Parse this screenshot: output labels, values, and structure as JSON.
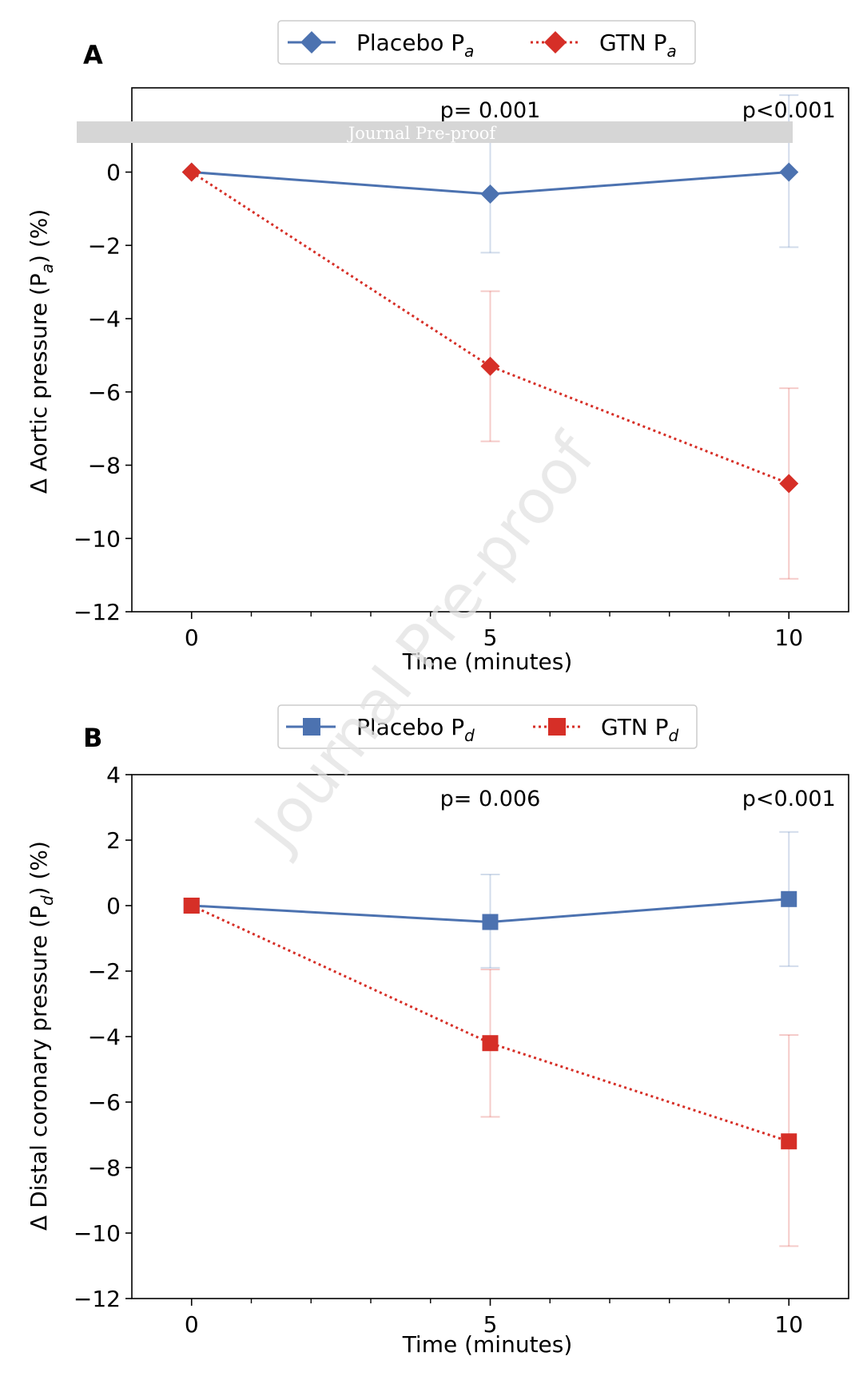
{
  "watermark": {
    "banner_text": "Journal Pre-proof",
    "diagonal_text": "Journal Pre-proof"
  },
  "chart_data": [
    {
      "panel_label": "A",
      "type": "line",
      "xlabel": "Time (minutes)",
      "ylabel_prefix": "Δ Aortic pressure (P",
      "ylabel_sub": "a",
      "ylabel_suffix": ") (%)",
      "xlim": [
        -1,
        11
      ],
      "ylim": [
        -12,
        2.3
      ],
      "xticks": [
        0,
        5,
        10
      ],
      "xtick_labels": [
        "0",
        "5",
        "10"
      ],
      "yticks": [
        -12,
        -10,
        -8,
        -6,
        -4,
        -2,
        0
      ],
      "ytick_labels": [
        "−12",
        "−10",
        "−8",
        "−6",
        "−4",
        "−2",
        "0"
      ],
      "minor_xticks": [
        1,
        2,
        3,
        4,
        6,
        7,
        8,
        9
      ],
      "annotations": [
        {
          "x": 5,
          "text": "p= 0.001"
        },
        {
          "x": 10,
          "text": "p<0.001"
        }
      ],
      "legend_position": "top",
      "series": [
        {
          "name": "Placebo P",
          "name_sub": "a",
          "color": "#4c72b0",
          "line_style": "solid",
          "marker": "diamond",
          "x": [
            0,
            5,
            10
          ],
          "y": [
            0,
            -0.6,
            0
          ],
          "err_low": [
            0,
            -2.2,
            -2.05
          ],
          "err_high": [
            0,
            0.95,
            2.1
          ]
        },
        {
          "name": "GTN P",
          "name_sub": "a",
          "color": "#d62f27",
          "line_style": "dotted",
          "marker": "diamond",
          "x": [
            0,
            5,
            10
          ],
          "y": [
            0,
            -5.3,
            -8.5
          ],
          "err_low": [
            0,
            -7.35,
            -11.1
          ],
          "err_high": [
            0,
            -3.25,
            -5.9
          ]
        }
      ]
    },
    {
      "panel_label": "B",
      "type": "line",
      "xlabel": "Time (minutes)",
      "ylabel_prefix": "Δ Distal coronary pressure (P",
      "ylabel_sub": "d",
      "ylabel_suffix": ") (%)",
      "xlim": [
        -1,
        11
      ],
      "ylim": [
        -12,
        4
      ],
      "xticks": [
        0,
        5,
        10
      ],
      "xtick_labels": [
        "0",
        "5",
        "10"
      ],
      "yticks": [
        -12,
        -10,
        -8,
        -6,
        -4,
        -2,
        0,
        2,
        4
      ],
      "ytick_labels": [
        "−12",
        "−10",
        "−8",
        "−6",
        "−4",
        "−2",
        "0",
        "2",
        "4"
      ],
      "minor_xticks": [
        1,
        2,
        3,
        4,
        6,
        7,
        8,
        9
      ],
      "annotations": [
        {
          "x": 5,
          "text": "p= 0.006"
        },
        {
          "x": 10,
          "text": "p<0.001"
        }
      ],
      "legend_position": "top",
      "series": [
        {
          "name": "Placebo P",
          "name_sub": "d",
          "color": "#4c72b0",
          "line_style": "solid",
          "marker": "square",
          "x": [
            0,
            5,
            10
          ],
          "y": [
            0,
            -0.5,
            0.2
          ],
          "err_low": [
            0,
            -1.9,
            -1.85
          ],
          "err_high": [
            0,
            0.95,
            2.25
          ]
        },
        {
          "name": "GTN P",
          "name_sub": "d",
          "color": "#d62f27",
          "line_style": "dotted",
          "marker": "square",
          "x": [
            0,
            5,
            10
          ],
          "y": [
            0,
            -4.2,
            -7.2
          ],
          "err_low": [
            0,
            -6.45,
            -10.4
          ],
          "err_high": [
            0,
            -1.95,
            -3.95
          ]
        }
      ]
    }
  ]
}
